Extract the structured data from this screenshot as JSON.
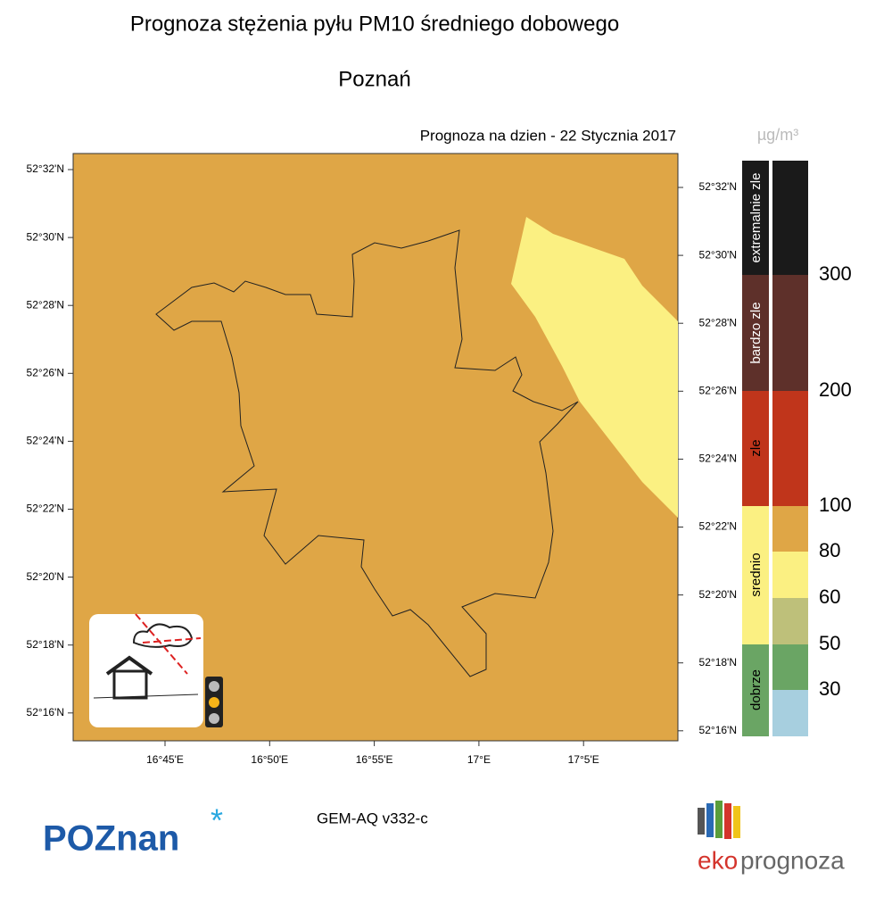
{
  "header": {
    "title": "Prognoza stężenia pyłu PM10 średniego dobowego",
    "subtitle": "Poznań",
    "forecast_date": "Prognoza na dzien -  22 Stycznia 2017"
  },
  "map": {
    "lat_ticks_left": [
      "52°32'N",
      "52°30'N",
      "52°28'N",
      "52°26'N",
      "52°24'N",
      "52°22'N",
      "52°20'N",
      "52°18'N",
      "52°16'N"
    ],
    "lat_ticks_right": [
      "52°32'N",
      "52°30'N",
      "52°28'N",
      "52°26'N",
      "52°24'N",
      "52°22'N",
      "52°20'N",
      "52°18'N",
      "52°16'N"
    ],
    "lon_ticks": [
      "16°45'E",
      "16°50'E",
      "16°55'E",
      "17°E",
      "17°5'E"
    ]
  },
  "legend": {
    "unit": "µg/m³",
    "categories": [
      "extremalnie zle",
      "bardzo zle",
      "zle",
      "srednio",
      "dobrze"
    ],
    "thresholds": [
      300,
      200,
      100,
      80,
      60,
      50,
      30
    ]
  },
  "footer": {
    "model": "GEM-AQ v332-c",
    "city_logo": "POZnan",
    "brand_prefix": "eko",
    "brand_suffix": "prognoza"
  }
}
